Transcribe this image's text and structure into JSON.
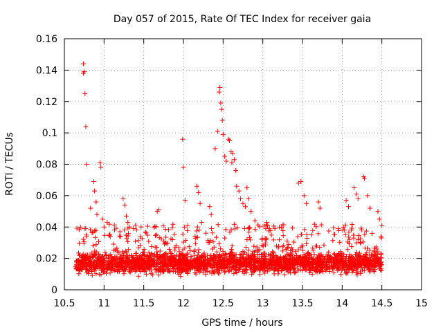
{
  "chart_data": {
    "type": "scatter",
    "title": "Day 057 of 2015, Rate Of TEC Index for receiver gaia",
    "xlabel": "GPS time / hours",
    "ylabel": "ROTI / TECUs",
    "xlim": [
      10.5,
      15
    ],
    "ylim": [
      0,
      0.16
    ],
    "x_ticks": [
      "10.5",
      "11",
      "11.5",
      "12",
      "12.5",
      "13",
      "13.5",
      "14",
      "14.5",
      "15"
    ],
    "y_ticks": [
      "0",
      "0.02",
      "0.04",
      "0.06",
      "0.08",
      "0.1",
      "0.12",
      "0.14",
      "0.16"
    ],
    "grid": true,
    "marker": "plus",
    "color": "#ff0000",
    "series": [
      {
        "points": [
          [
            10.74,
            0.144
          ],
          [
            10.74,
            0.138
          ],
          [
            10.75,
            0.139
          ],
          [
            10.76,
            0.125
          ],
          [
            10.77,
            0.104
          ],
          [
            10.78,
            0.08
          ],
          [
            10.83,
            0.052
          ],
          [
            10.87,
            0.069
          ],
          [
            10.88,
            0.063
          ],
          [
            10.9,
            0.056
          ],
          [
            10.91,
            0.048
          ],
          [
            10.95,
            0.081
          ],
          [
            10.96,
            0.078
          ],
          [
            10.98,
            0.045
          ],
          [
            11.0,
            0.04
          ],
          [
            11.04,
            0.043
          ],
          [
            11.2,
            0.037
          ],
          [
            11.24,
            0.058
          ],
          [
            11.26,
            0.054
          ],
          [
            11.28,
            0.047
          ],
          [
            11.3,
            0.043
          ],
          [
            11.67,
            0.05
          ],
          [
            11.69,
            0.051
          ],
          [
            11.99,
            0.096
          ],
          [
            12.0,
            0.078
          ],
          [
            12.02,
            0.057
          ],
          [
            12.17,
            0.066
          ],
          [
            12.19,
            0.062
          ],
          [
            12.21,
            0.055
          ],
          [
            12.23,
            0.043
          ],
          [
            12.33,
            0.053
          ],
          [
            12.35,
            0.048
          ],
          [
            12.4,
            0.09
          ],
          [
            12.43,
            0.101
          ],
          [
            12.45,
            0.126
          ],
          [
            12.46,
            0.129
          ],
          [
            12.47,
            0.119
          ],
          [
            12.48,
            0.115
          ],
          [
            12.49,
            0.108
          ],
          [
            12.5,
            0.099
          ],
          [
            12.52,
            0.085
          ],
          [
            12.54,
            0.082
          ],
          [
            12.57,
            0.096
          ],
          [
            12.58,
            0.095
          ],
          [
            12.6,
            0.088
          ],
          [
            12.61,
            0.081
          ],
          [
            12.62,
            0.087
          ],
          [
            12.64,
            0.083
          ],
          [
            12.66,
            0.076
          ],
          [
            12.67,
            0.066
          ],
          [
            12.7,
            0.063
          ],
          [
            12.72,
            0.058
          ],
          [
            12.75,
            0.055
          ],
          [
            12.78,
            0.053
          ],
          [
            12.8,
            0.065
          ],
          [
            12.82,
            0.058
          ],
          [
            12.85,
            0.05
          ],
          [
            12.9,
            0.044
          ],
          [
            13.05,
            0.043
          ],
          [
            13.45,
            0.068
          ],
          [
            13.48,
            0.069
          ],
          [
            13.52,
            0.06
          ],
          [
            13.55,
            0.055
          ],
          [
            13.7,
            0.056
          ],
          [
            13.72,
            0.052
          ],
          [
            14.05,
            0.057
          ],
          [
            14.08,
            0.053
          ],
          [
            14.15,
            0.065
          ],
          [
            14.18,
            0.061
          ],
          [
            14.2,
            0.058
          ],
          [
            14.27,
            0.072
          ],
          [
            14.28,
            0.071
          ],
          [
            14.32,
            0.06
          ],
          [
            14.35,
            0.052
          ],
          [
            14.45,
            0.05
          ],
          [
            14.47,
            0.045
          ],
          [
            14.5,
            0.041
          ]
        ]
      }
    ]
  }
}
